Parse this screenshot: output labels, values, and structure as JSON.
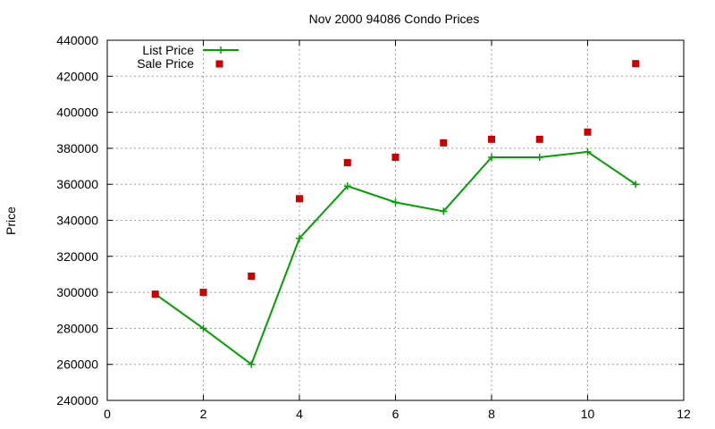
{
  "chart_data": {
    "type": "line",
    "title": "Nov 2000 94086 Condo Prices",
    "xlabel": "",
    "ylabel": "Price",
    "xlim": [
      0,
      12
    ],
    "ylim": [
      240000,
      440000
    ],
    "xticks": [
      "0",
      "2",
      "4",
      "6",
      "8",
      "10",
      "12"
    ],
    "yticks": [
      "240000",
      "260000",
      "280000",
      "300000",
      "320000",
      "340000",
      "360000",
      "380000",
      "400000",
      "420000",
      "440000"
    ],
    "grid": true,
    "legend_position": "top-left",
    "series": [
      {
        "name": "List Price",
        "style": "line-with-plus-markers",
        "color": "#00a000",
        "x": [
          1,
          2,
          3,
          4,
          5,
          6,
          7,
          8,
          9,
          10,
          11
        ],
        "y": [
          299000,
          280000,
          260000,
          330000,
          359000,
          350000,
          345000,
          375000,
          375000,
          378000,
          360000
        ]
      },
      {
        "name": "Sale Price",
        "style": "square-markers",
        "color": "#cc0000",
        "x": [
          1,
          2,
          3,
          4,
          5,
          6,
          7,
          8,
          9,
          10,
          11
        ],
        "y": [
          299000,
          300000,
          309000,
          352000,
          372000,
          375000,
          383000,
          385000,
          385000,
          389000,
          427000
        ]
      }
    ]
  }
}
